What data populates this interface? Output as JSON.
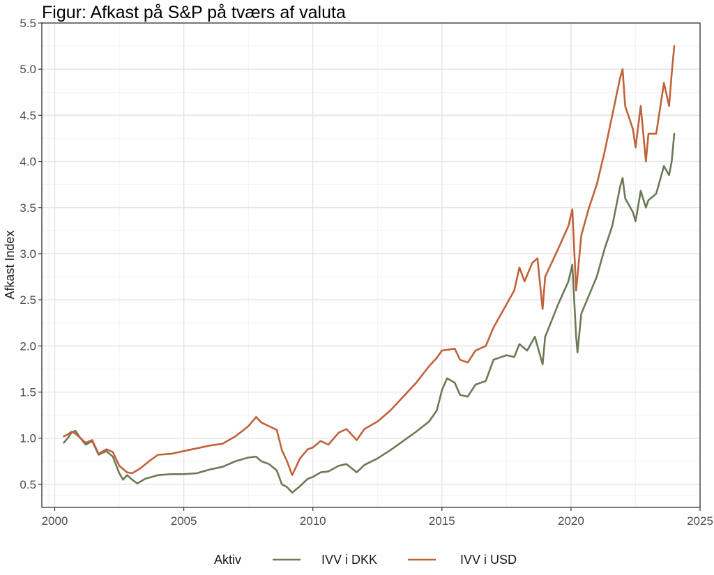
{
  "chart_data": {
    "type": "line",
    "title": "Figur: Afkast på S&P på tværs af valuta",
    "xlabel": "",
    "ylabel": "Afkast Index",
    "xlim": [
      1999.5,
      2025.0
    ],
    "ylim": [
      0.25,
      5.5
    ],
    "x_ticks": [
      2000,
      2005,
      2010,
      2015,
      2020,
      2025
    ],
    "y_ticks": [
      0.5,
      1.0,
      1.5,
      2.0,
      2.5,
      3.0,
      3.5,
      4.0,
      4.5,
      5.0,
      5.5
    ],
    "x_tick_labels": [
      "2000",
      "2005",
      "2010",
      "2015",
      "2020",
      "2025"
    ],
    "y_tick_labels": [
      "0.5",
      "1.0",
      "1.5",
      "2.0",
      "2.5",
      "3.0",
      "3.5",
      "4.0",
      "4.5",
      "5.0",
      "5.5"
    ],
    "grid": true,
    "legend": {
      "title": "Aktiv",
      "position": "bottom"
    },
    "series": [
      {
        "name": "IVV i DKK",
        "color": "#6b7a55",
        "points": [
          [
            2000.35,
            0.95
          ],
          [
            2000.5,
            1.0
          ],
          [
            2000.65,
            1.06
          ],
          [
            2000.8,
            1.08
          ],
          [
            2001.0,
            1.0
          ],
          [
            2001.2,
            0.93
          ],
          [
            2001.45,
            0.97
          ],
          [
            2001.7,
            0.82
          ],
          [
            2002.0,
            0.86
          ],
          [
            2002.25,
            0.8
          ],
          [
            2002.5,
            0.62
          ],
          [
            2002.65,
            0.55
          ],
          [
            2002.8,
            0.6
          ],
          [
            2003.0,
            0.55
          ],
          [
            2003.2,
            0.51
          ],
          [
            2003.5,
            0.56
          ],
          [
            2004.0,
            0.6
          ],
          [
            2004.5,
            0.61
          ],
          [
            2005.0,
            0.61
          ],
          [
            2005.5,
            0.62
          ],
          [
            2006.0,
            0.66
          ],
          [
            2006.5,
            0.69
          ],
          [
            2007.0,
            0.75
          ],
          [
            2007.5,
            0.79
          ],
          [
            2007.8,
            0.8
          ],
          [
            2008.0,
            0.75
          ],
          [
            2008.3,
            0.72
          ],
          [
            2008.6,
            0.65
          ],
          [
            2008.8,
            0.5
          ],
          [
            2009.0,
            0.47
          ],
          [
            2009.2,
            0.41
          ],
          [
            2009.5,
            0.48
          ],
          [
            2009.8,
            0.56
          ],
          [
            2010.0,
            0.58
          ],
          [
            2010.3,
            0.63
          ],
          [
            2010.6,
            0.64
          ],
          [
            2011.0,
            0.7
          ],
          [
            2011.3,
            0.72
          ],
          [
            2011.7,
            0.63
          ],
          [
            2012.0,
            0.71
          ],
          [
            2012.5,
            0.78
          ],
          [
            2013.0,
            0.87
          ],
          [
            2013.5,
            0.97
          ],
          [
            2014.0,
            1.07
          ],
          [
            2014.5,
            1.18
          ],
          [
            2014.8,
            1.3
          ],
          [
            2015.0,
            1.52
          ],
          [
            2015.2,
            1.65
          ],
          [
            2015.5,
            1.6
          ],
          [
            2015.7,
            1.47
          ],
          [
            2016.0,
            1.45
          ],
          [
            2016.3,
            1.58
          ],
          [
            2016.7,
            1.62
          ],
          [
            2017.0,
            1.85
          ],
          [
            2017.5,
            1.9
          ],
          [
            2017.8,
            1.88
          ],
          [
            2018.0,
            2.02
          ],
          [
            2018.3,
            1.95
          ],
          [
            2018.6,
            2.1
          ],
          [
            2018.9,
            1.8
          ],
          [
            2019.0,
            2.1
          ],
          [
            2019.5,
            2.45
          ],
          [
            2019.9,
            2.7
          ],
          [
            2020.05,
            2.88
          ],
          [
            2020.2,
            2.1
          ],
          [
            2020.25,
            1.93
          ],
          [
            2020.4,
            2.35
          ],
          [
            2020.7,
            2.55
          ],
          [
            2021.0,
            2.75
          ],
          [
            2021.3,
            3.05
          ],
          [
            2021.6,
            3.3
          ],
          [
            2021.9,
            3.72
          ],
          [
            2022.0,
            3.82
          ],
          [
            2022.1,
            3.6
          ],
          [
            2022.4,
            3.45
          ],
          [
            2022.5,
            3.35
          ],
          [
            2022.7,
            3.68
          ],
          [
            2022.9,
            3.5
          ],
          [
            2023.0,
            3.58
          ],
          [
            2023.3,
            3.65
          ],
          [
            2023.6,
            3.95
          ],
          [
            2023.8,
            3.85
          ],
          [
            2023.9,
            4.0
          ],
          [
            2024.0,
            4.3
          ]
        ]
      },
      {
        "name": "IVV i USD",
        "color": "#c0623a",
        "points": [
          [
            2000.35,
            1.02
          ],
          [
            2000.5,
            1.04
          ],
          [
            2000.65,
            1.07
          ],
          [
            2000.8,
            1.05
          ],
          [
            2001.0,
            1.0
          ],
          [
            2001.2,
            0.95
          ],
          [
            2001.45,
            0.98
          ],
          [
            2001.7,
            0.83
          ],
          [
            2002.0,
            0.88
          ],
          [
            2002.25,
            0.85
          ],
          [
            2002.5,
            0.7
          ],
          [
            2002.8,
            0.63
          ],
          [
            2003.0,
            0.62
          ],
          [
            2003.3,
            0.67
          ],
          [
            2003.7,
            0.76
          ],
          [
            2004.0,
            0.82
          ],
          [
            2004.5,
            0.83
          ],
          [
            2005.0,
            0.86
          ],
          [
            2005.5,
            0.89
          ],
          [
            2006.0,
            0.92
          ],
          [
            2006.5,
            0.94
          ],
          [
            2007.0,
            1.02
          ],
          [
            2007.5,
            1.13
          ],
          [
            2007.8,
            1.23
          ],
          [
            2008.0,
            1.17
          ],
          [
            2008.3,
            1.13
          ],
          [
            2008.6,
            1.09
          ],
          [
            2008.8,
            0.87
          ],
          [
            2009.0,
            0.75
          ],
          [
            2009.2,
            0.6
          ],
          [
            2009.5,
            0.78
          ],
          [
            2009.8,
            0.88
          ],
          [
            2010.0,
            0.9
          ],
          [
            2010.3,
            0.97
          ],
          [
            2010.6,
            0.93
          ],
          [
            2011.0,
            1.06
          ],
          [
            2011.3,
            1.1
          ],
          [
            2011.7,
            0.98
          ],
          [
            2012.0,
            1.1
          ],
          [
            2012.5,
            1.18
          ],
          [
            2013.0,
            1.3
          ],
          [
            2013.5,
            1.45
          ],
          [
            2014.0,
            1.6
          ],
          [
            2014.5,
            1.78
          ],
          [
            2014.8,
            1.87
          ],
          [
            2015.0,
            1.95
          ],
          [
            2015.5,
            1.97
          ],
          [
            2015.7,
            1.85
          ],
          [
            2016.0,
            1.82
          ],
          [
            2016.3,
            1.95
          ],
          [
            2016.7,
            2.0
          ],
          [
            2017.0,
            2.2
          ],
          [
            2017.5,
            2.45
          ],
          [
            2017.8,
            2.6
          ],
          [
            2018.0,
            2.85
          ],
          [
            2018.2,
            2.7
          ],
          [
            2018.5,
            2.9
          ],
          [
            2018.7,
            2.95
          ],
          [
            2018.9,
            2.4
          ],
          [
            2019.0,
            2.75
          ],
          [
            2019.5,
            3.05
          ],
          [
            2019.9,
            3.3
          ],
          [
            2020.05,
            3.48
          ],
          [
            2020.2,
            2.6
          ],
          [
            2020.4,
            3.2
          ],
          [
            2020.7,
            3.5
          ],
          [
            2021.0,
            3.75
          ],
          [
            2021.3,
            4.1
          ],
          [
            2021.6,
            4.5
          ],
          [
            2021.9,
            4.9
          ],
          [
            2022.0,
            5.0
          ],
          [
            2022.1,
            4.6
          ],
          [
            2022.4,
            4.35
          ],
          [
            2022.5,
            4.15
          ],
          [
            2022.7,
            4.6
          ],
          [
            2022.9,
            4.0
          ],
          [
            2023.0,
            4.3
          ],
          [
            2023.3,
            4.3
          ],
          [
            2023.6,
            4.85
          ],
          [
            2023.8,
            4.6
          ],
          [
            2023.9,
            4.95
          ],
          [
            2024.0,
            5.25
          ]
        ]
      }
    ]
  }
}
